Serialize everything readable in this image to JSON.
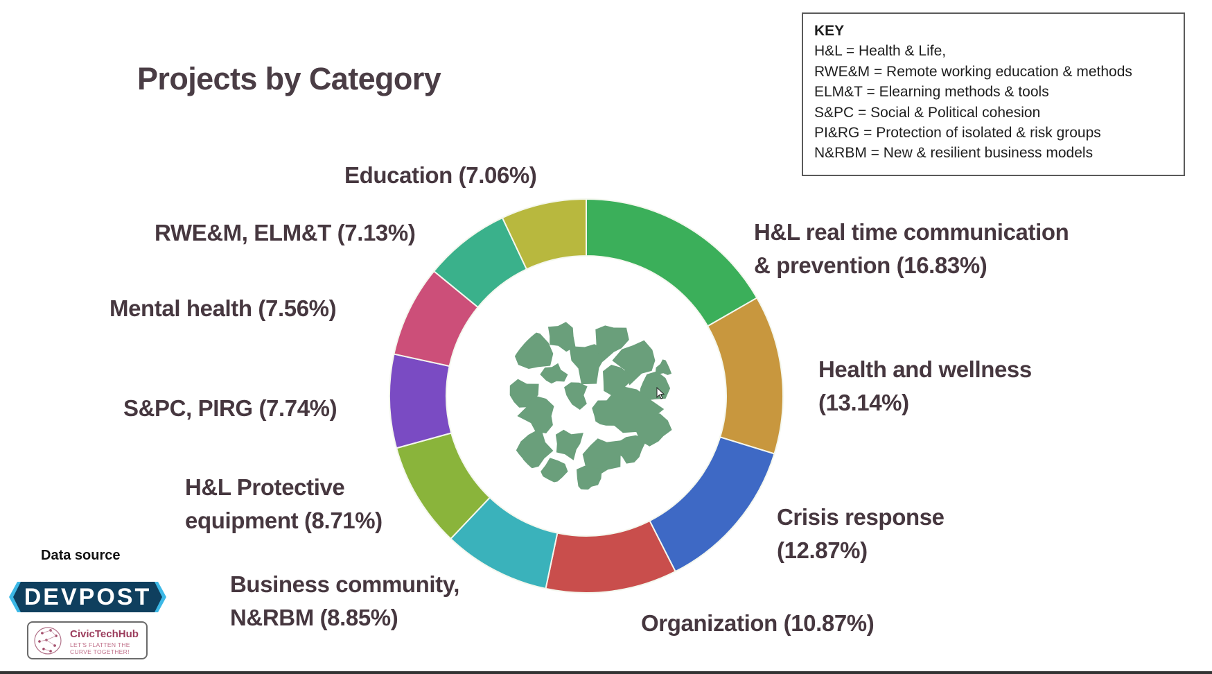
{
  "slide": {
    "title": "Projects by Category"
  },
  "key": {
    "title": "KEY",
    "lines": [
      "H&L = Health & Life,",
      "RWE&M = Remote working education & methods",
      "ELM&T = Elearning methods & tools",
      "S&PC = Social & Political cohesion",
      "PI&RG = Protection of isolated & risk groups",
      "N&RBM = New & resilient business models"
    ]
  },
  "data_source": {
    "label": "Data source",
    "devpost_logo_text": "DEVPOST",
    "civic_name": "CivicTechHub",
    "civic_tagline_1": "LET'S FLATTEN THE",
    "civic_tagline_2": "CURVE TOGETHER!"
  },
  "chart_data": {
    "type": "pie",
    "subtype": "donut",
    "title": "Projects by Category",
    "start": "12 o'clock, clockwise",
    "categories": [
      "H&L real time communication & prevention",
      "Health and wellness",
      "Crisis response",
      "Organization",
      "Business community, N&RBM",
      "H&L Protective equipment",
      "S&PC, PIRG",
      "Mental health",
      "RWE&M, ELM&T",
      "Education"
    ],
    "values": [
      16.83,
      13.14,
      12.87,
      10.87,
      8.85,
      8.71,
      7.74,
      7.56,
      7.13,
      7.06
    ],
    "unit": "%",
    "colors": [
      "#3baf5a",
      "#c8973e",
      "#3e69c5",
      "#c94e4c",
      "#3ab2bb",
      "#8ab43b",
      "#7a4bc3",
      "#cc4f79",
      "#3ab18b",
      "#b8b83e"
    ],
    "labels": [
      {
        "line1": "H&L real time communication",
        "line2": "& prevention (16.83%)"
      },
      {
        "line1": "Health and wellness",
        "line2": "(13.14%)"
      },
      {
        "line1": "Crisis response",
        "line2": "(12.87%)"
      },
      {
        "line1": "Organization  (10.87%)",
        "line2": ""
      },
      {
        "line1": "Business community,",
        "line2": "N&RBM  (8.85%)"
      },
      {
        "line1": "H&L Protective",
        "line2": "equipment  (8.71%)"
      },
      {
        "line1": "S&PC, PIRG (7.74%)",
        "line2": ""
      },
      {
        "line1": "Mental health (7.56%)",
        "line2": ""
      },
      {
        "line1": "RWE&M,  ELM&T (7.13%)",
        "line2": ""
      },
      {
        "line1": "Education (7.06%)",
        "line2": ""
      }
    ],
    "center_image": "globe-map-emblem",
    "legend": "top-right key box"
  }
}
